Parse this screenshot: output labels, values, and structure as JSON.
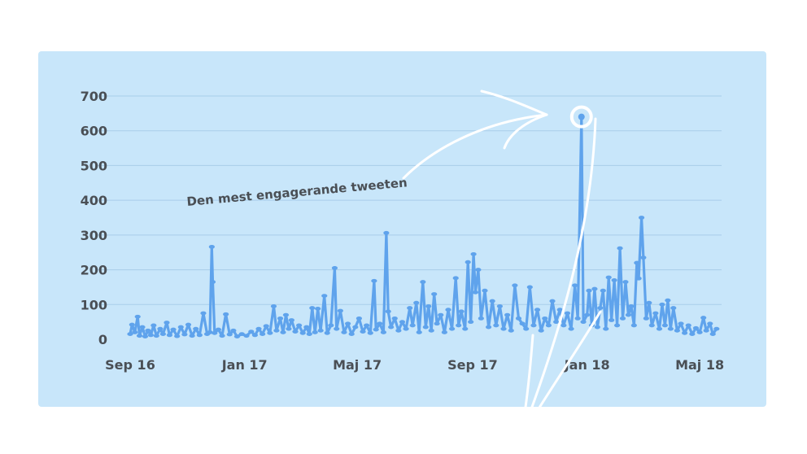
{
  "colors": {
    "panel": "#c8e6fa",
    "series": "#5fa3ec",
    "grid": "#a9cde9",
    "text": "#4a4f55",
    "arrow": "#ffffff"
  },
  "annotation": {
    "text": "Den mest engagerande tweeten"
  },
  "chart_data": {
    "type": "line",
    "title": "",
    "xlabel": "",
    "ylabel": "",
    "ylim": [
      0,
      700
    ],
    "y_ticks": [
      "0",
      "100",
      "200",
      "300",
      "400",
      "500",
      "600",
      "700"
    ],
    "x_range": [
      "2016-09-01",
      "2018-05-20"
    ],
    "x_ticks": [
      {
        "label": "Sep 16",
        "date": "2016-09-01"
      },
      {
        "label": "Jan 17",
        "date": "2017-01-01"
      },
      {
        "label": "Maj  17",
        "date": "2017-05-01"
      },
      {
        "label": "Sep 17",
        "date": "2017-09-01"
      },
      {
        "label": "Jan 18",
        "date": "2018-01-01"
      },
      {
        "label": "Maj 18",
        "date": "2018-05-01"
      }
    ],
    "grid": true,
    "legend": "none",
    "highlight": {
      "date": "2017-12-26",
      "value": 640
    },
    "series": [
      {
        "points": [
          [
            "2016-09-01",
            15
          ],
          [
            "2016-09-03",
            42
          ],
          [
            "2016-09-06",
            20
          ],
          [
            "2016-09-09",
            65
          ],
          [
            "2016-09-11",
            10
          ],
          [
            "2016-09-14",
            35
          ],
          [
            "2016-09-17",
            8
          ],
          [
            "2016-09-20",
            25
          ],
          [
            "2016-09-23",
            12
          ],
          [
            "2016-09-26",
            40
          ],
          [
            "2016-09-29",
            10
          ],
          [
            "2016-10-03",
            30
          ],
          [
            "2016-10-06",
            15
          ],
          [
            "2016-10-10",
            48
          ],
          [
            "2016-10-13",
            12
          ],
          [
            "2016-10-17",
            28
          ],
          [
            "2016-10-21",
            9
          ],
          [
            "2016-10-25",
            35
          ],
          [
            "2016-10-29",
            14
          ],
          [
            "2016-11-02",
            42
          ],
          [
            "2016-11-06",
            10
          ],
          [
            "2016-11-10",
            30
          ],
          [
            "2016-11-14",
            12
          ],
          [
            "2016-11-18",
            75
          ],
          [
            "2016-11-22",
            15
          ],
          [
            "2016-11-25",
            20
          ],
          [
            "2016-11-27",
            266
          ],
          [
            "2016-11-28",
            165
          ],
          [
            "2016-11-30",
            18
          ],
          [
            "2016-12-04",
            28
          ],
          [
            "2016-12-08",
            10
          ],
          [
            "2016-12-12",
            72
          ],
          [
            "2016-12-16",
            14
          ],
          [
            "2016-12-20",
            25
          ],
          [
            "2016-12-24",
            8
          ],
          [
            "2016-12-29",
            15
          ],
          [
            "2017-01-03",
            10
          ],
          [
            "2017-01-08",
            22
          ],
          [
            "2017-01-12",
            12
          ],
          [
            "2017-01-16",
            30
          ],
          [
            "2017-01-20",
            15
          ],
          [
            "2017-01-24",
            38
          ],
          [
            "2017-01-28",
            18
          ],
          [
            "2017-02-01",
            95
          ],
          [
            "2017-02-04",
            25
          ],
          [
            "2017-02-08",
            60
          ],
          [
            "2017-02-11",
            20
          ],
          [
            "2017-02-14",
            70
          ],
          [
            "2017-02-17",
            30
          ],
          [
            "2017-02-20",
            55
          ],
          [
            "2017-02-24",
            22
          ],
          [
            "2017-02-28",
            40
          ],
          [
            "2017-03-04",
            18
          ],
          [
            "2017-03-08",
            35
          ],
          [
            "2017-03-11",
            15
          ],
          [
            "2017-03-14",
            90
          ],
          [
            "2017-03-17",
            20
          ],
          [
            "2017-03-20",
            88
          ],
          [
            "2017-03-23",
            25
          ],
          [
            "2017-03-27",
            125
          ],
          [
            "2017-03-30",
            18
          ],
          [
            "2017-04-03",
            40
          ],
          [
            "2017-04-07",
            205
          ],
          [
            "2017-04-09",
            30
          ],
          [
            "2017-04-13",
            82
          ],
          [
            "2017-04-17",
            20
          ],
          [
            "2017-04-21",
            45
          ],
          [
            "2017-04-25",
            15
          ],
          [
            "2017-04-29",
            35
          ],
          [
            "2017-05-03",
            60
          ],
          [
            "2017-05-07",
            22
          ],
          [
            "2017-05-11",
            40
          ],
          [
            "2017-05-15",
            18
          ],
          [
            "2017-05-19",
            168
          ],
          [
            "2017-05-21",
            28
          ],
          [
            "2017-05-25",
            45
          ],
          [
            "2017-05-29",
            20
          ],
          [
            "2017-06-01",
            306
          ],
          [
            "2017-06-03",
            80
          ],
          [
            "2017-06-06",
            35
          ],
          [
            "2017-06-10",
            60
          ],
          [
            "2017-06-14",
            25
          ],
          [
            "2017-06-18",
            50
          ],
          [
            "2017-06-22",
            30
          ],
          [
            "2017-06-26",
            90
          ],
          [
            "2017-06-29",
            40
          ],
          [
            "2017-07-03",
            105
          ],
          [
            "2017-07-06",
            20
          ],
          [
            "2017-07-10",
            165
          ],
          [
            "2017-07-13",
            35
          ],
          [
            "2017-07-16",
            95
          ],
          [
            "2017-07-19",
            25
          ],
          [
            "2017-07-22",
            130
          ],
          [
            "2017-07-25",
            45
          ],
          [
            "2017-07-29",
            70
          ],
          [
            "2017-08-02",
            20
          ],
          [
            "2017-08-06",
            85
          ],
          [
            "2017-08-10",
            30
          ],
          [
            "2017-08-14",
            176
          ],
          [
            "2017-08-17",
            40
          ],
          [
            "2017-08-20",
            80
          ],
          [
            "2017-08-24",
            30
          ],
          [
            "2017-08-27",
            222
          ],
          [
            "2017-08-30",
            50
          ],
          [
            "2017-09-02",
            245
          ],
          [
            "2017-09-04",
            135
          ],
          [
            "2017-09-07",
            200
          ],
          [
            "2017-09-10",
            60
          ],
          [
            "2017-09-14",
            140
          ],
          [
            "2017-09-18",
            35
          ],
          [
            "2017-09-22",
            110
          ],
          [
            "2017-09-26",
            40
          ],
          [
            "2017-09-30",
            95
          ],
          [
            "2017-10-04",
            30
          ],
          [
            "2017-10-08",
            70
          ],
          [
            "2017-10-12",
            25
          ],
          [
            "2017-10-16",
            155
          ],
          [
            "2017-10-20",
            60
          ],
          [
            "2017-10-24",
            45
          ],
          [
            "2017-10-28",
            30
          ],
          [
            "2017-11-01",
            150
          ],
          [
            "2017-11-05",
            40
          ],
          [
            "2017-11-09",
            85
          ],
          [
            "2017-11-13",
            25
          ],
          [
            "2017-11-17",
            60
          ],
          [
            "2017-11-21",
            40
          ],
          [
            "2017-11-25",
            110
          ],
          [
            "2017-11-29",
            50
          ],
          [
            "2017-12-03",
            85
          ],
          [
            "2017-12-07",
            40
          ],
          [
            "2017-12-11",
            75
          ],
          [
            "2017-12-15",
            30
          ],
          [
            "2017-12-19",
            155
          ],
          [
            "2017-12-22",
            60
          ],
          [
            "2017-12-26",
            640
          ],
          [
            "2017-12-28",
            50
          ],
          [
            "2018-01-01",
            70
          ],
          [
            "2018-01-03",
            140
          ],
          [
            "2018-01-06",
            40
          ],
          [
            "2018-01-09",
            145
          ],
          [
            "2018-01-12",
            35
          ],
          [
            "2018-01-15",
            90
          ],
          [
            "2018-01-18",
            140
          ],
          [
            "2018-01-21",
            30
          ],
          [
            "2018-01-24",
            178
          ],
          [
            "2018-01-27",
            55
          ],
          [
            "2018-01-30",
            170
          ],
          [
            "2018-02-02",
            40
          ],
          [
            "2018-02-05",
            262
          ],
          [
            "2018-02-08",
            60
          ],
          [
            "2018-02-11",
            165
          ],
          [
            "2018-02-14",
            70
          ],
          [
            "2018-02-17",
            95
          ],
          [
            "2018-02-20",
            40
          ],
          [
            "2018-02-23",
            220
          ],
          [
            "2018-02-25",
            175
          ],
          [
            "2018-02-28",
            350
          ],
          [
            "2018-03-02",
            235
          ],
          [
            "2018-03-05",
            60
          ],
          [
            "2018-03-08",
            105
          ],
          [
            "2018-03-11",
            40
          ],
          [
            "2018-03-15",
            75
          ],
          [
            "2018-03-19",
            30
          ],
          [
            "2018-03-22",
            100
          ],
          [
            "2018-03-25",
            40
          ],
          [
            "2018-03-28",
            112
          ],
          [
            "2018-03-31",
            30
          ],
          [
            "2018-04-03",
            90
          ],
          [
            "2018-04-07",
            25
          ],
          [
            "2018-04-11",
            45
          ],
          [
            "2018-04-15",
            18
          ],
          [
            "2018-04-19",
            40
          ],
          [
            "2018-04-23",
            15
          ],
          [
            "2018-04-27",
            32
          ],
          [
            "2018-05-01",
            20
          ],
          [
            "2018-05-05",
            62
          ],
          [
            "2018-05-08",
            25
          ],
          [
            "2018-05-12",
            45
          ],
          [
            "2018-05-15",
            15
          ],
          [
            "2018-05-19",
            30
          ]
        ]
      }
    ]
  }
}
